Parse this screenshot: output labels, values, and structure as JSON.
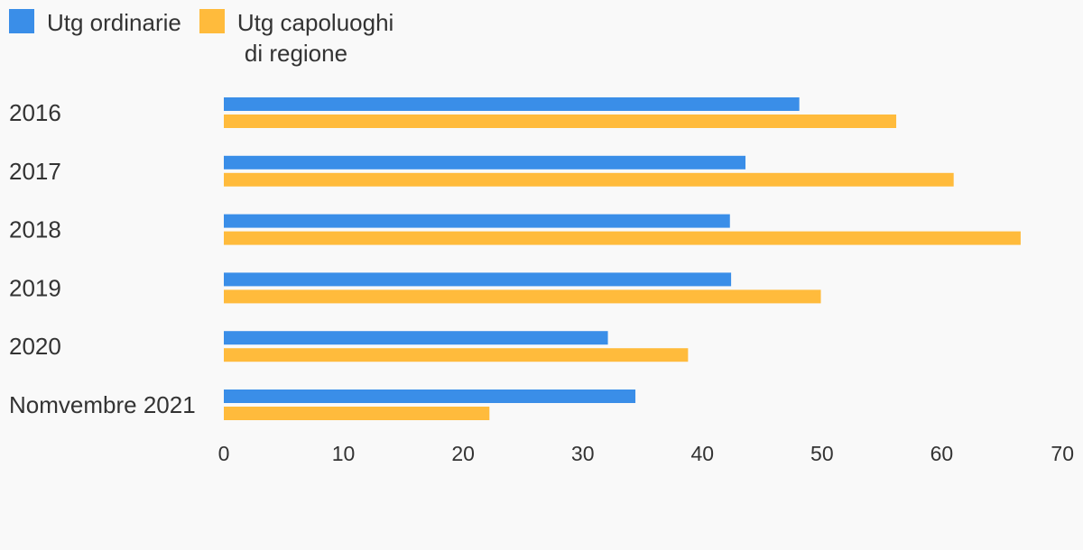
{
  "chart_data": {
    "type": "bar",
    "orientation": "horizontal",
    "categories": [
      "2016",
      "2017",
      "2018",
      "2019",
      "2020",
      "Nomvembre 2021"
    ],
    "series": [
      {
        "name": "Utg ordinarie",
        "name_lines": [
          "Utg ordinarie"
        ],
        "color": "#3a8ee8",
        "values": [
          48.1,
          43.6,
          42.3,
          42.4,
          32.1,
          34.4
        ]
      },
      {
        "name": "Utg capoluoghi di regione",
        "name_lines": [
          "Utg capoluoghi",
          "di regione"
        ],
        "color": "#ffbb3c",
        "values": [
          56.2,
          61.0,
          66.6,
          49.9,
          38.8,
          22.2
        ]
      }
    ],
    "xlim": [
      0,
      70
    ],
    "xticks": [
      "0",
      "10",
      "20",
      "30",
      "40",
      "50",
      "60",
      "70"
    ],
    "grid": false,
    "legend_position": "top-left",
    "title": "",
    "xlabel": "",
    "ylabel": ""
  }
}
